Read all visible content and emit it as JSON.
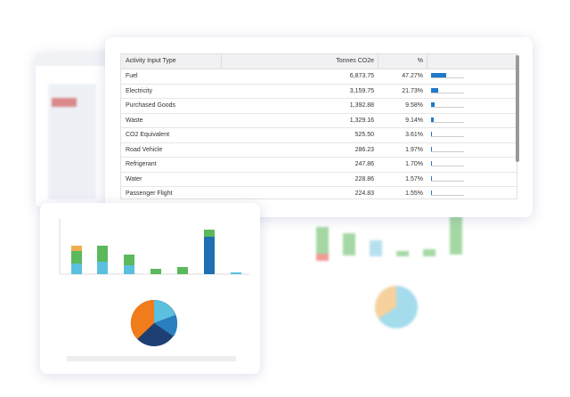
{
  "table": {
    "headers": [
      "Activity Input Type",
      "Tonnes CO2e",
      "%"
    ],
    "rows": [
      [
        "Fuel",
        "6,873.75",
        "47.27%"
      ],
      [
        "Electricity",
        "3,159.75",
        "21.73%"
      ],
      [
        "Purchased Goods",
        "1,392.88",
        "9.58%"
      ],
      [
        "Waste",
        "1,329.16",
        "9.14%"
      ],
      [
        "CO2 Equivalent",
        "525.50",
        "3.61%"
      ],
      [
        "Road Vehicle",
        "286.23",
        "1.97%"
      ],
      [
        "Refrigerant",
        "247.86",
        "1.70%"
      ],
      [
        "Water",
        "228.86",
        "1.57%"
      ],
      [
        "Passenger Flight",
        "224.83",
        "1.55%"
      ]
    ]
  }
}
